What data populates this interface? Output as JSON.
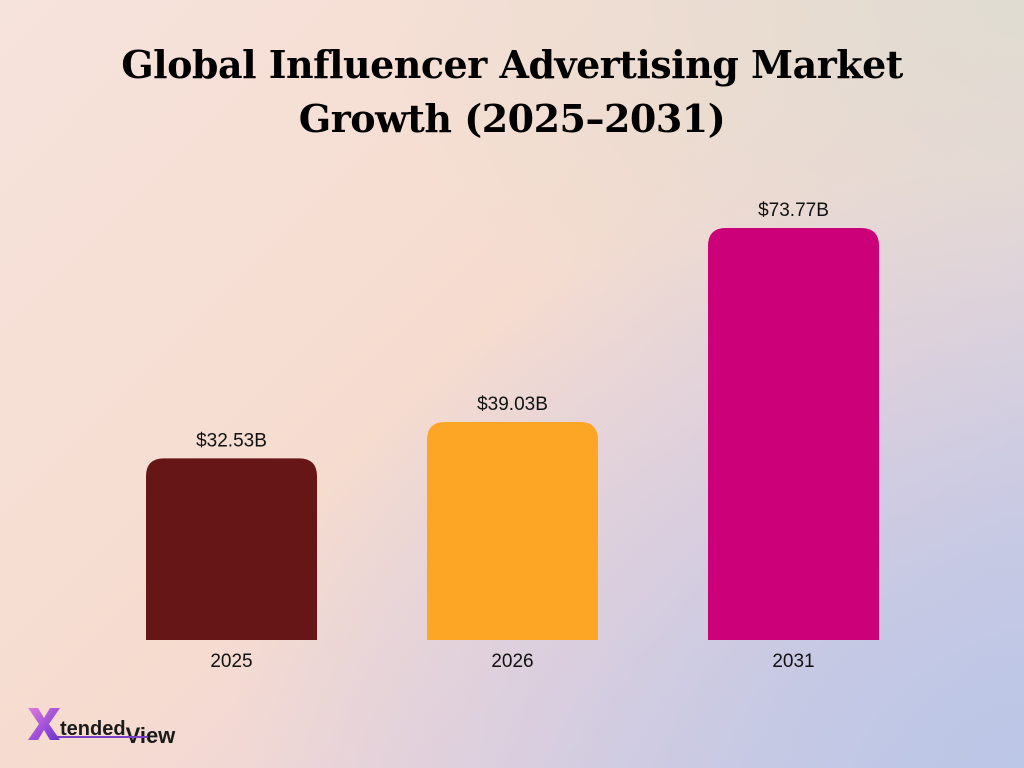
{
  "title_line1": "Global Influencer Advertising Market",
  "title_line2": "Growth (2025–2031)",
  "logo": {
    "mark": "X",
    "word1": "tended",
    "word2": "View",
    "colors": [
      "#6a2fd0",
      "#e07ae0"
    ]
  },
  "chart_data": {
    "type": "bar",
    "categories": [
      "2025",
      "2026",
      "2031"
    ],
    "values": [
      32.53,
      39.03,
      73.77
    ],
    "value_labels": [
      "$32.53B",
      "$39.03B",
      "$73.77B"
    ],
    "colors": [
      "#661616",
      "#fda626",
      "#cc0078"
    ],
    "ylim": [
      0,
      73.77
    ],
    "grid": false,
    "title": "Global Influencer Advertising Market Growth (2025–2031)"
  }
}
